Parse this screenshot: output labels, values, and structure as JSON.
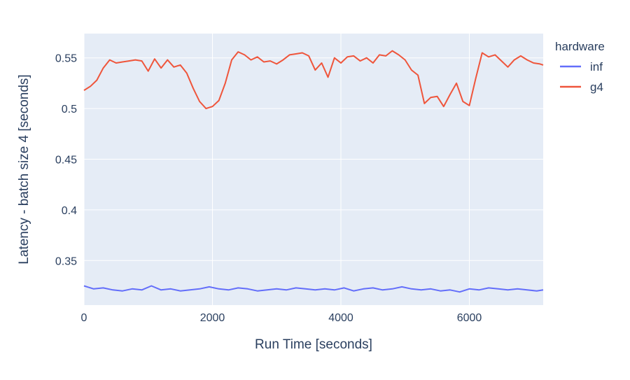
{
  "chart_data": {
    "type": "line",
    "xlabel": "Run Time [seconds]",
    "ylabel": "Latency - batch size 4 [seconds]",
    "xlim": [
      0,
      7150
    ],
    "ylim": [
      0.306,
      0.574
    ],
    "x_ticks": [
      0,
      2000,
      4000,
      6000
    ],
    "x_tick_labels": [
      "0",
      "2000",
      "4000",
      "6000"
    ],
    "y_ticks": [
      0.35,
      0.4,
      0.45,
      0.5,
      0.55
    ],
    "y_tick_labels": [
      "0.35",
      "0.4",
      "0.45",
      "0.5",
      "0.55"
    ],
    "grid": true,
    "legend": {
      "title": "hardware",
      "placement": "top-right",
      "entries": [
        "inf",
        "g4"
      ]
    },
    "series": [
      {
        "name": "inf",
        "color": "#636efa",
        "x": [
          0,
          150,
          300,
          450,
          600,
          750,
          900,
          1050,
          1200,
          1350,
          1500,
          1650,
          1800,
          1950,
          2100,
          2250,
          2400,
          2550,
          2700,
          2850,
          3000,
          3150,
          3300,
          3450,
          3600,
          3750,
          3900,
          4050,
          4200,
          4350,
          4500,
          4650,
          4800,
          4950,
          5100,
          5250,
          5400,
          5550,
          5700,
          5850,
          6000,
          6150,
          6300,
          6450,
          6600,
          6750,
          6900,
          7050,
          7150
        ],
        "y": [
          0.325,
          0.322,
          0.323,
          0.321,
          0.32,
          0.322,
          0.321,
          0.325,
          0.321,
          0.322,
          0.32,
          0.321,
          0.322,
          0.324,
          0.322,
          0.321,
          0.323,
          0.322,
          0.32,
          0.321,
          0.322,
          0.321,
          0.323,
          0.322,
          0.321,
          0.322,
          0.321,
          0.323,
          0.32,
          0.322,
          0.323,
          0.321,
          0.322,
          0.324,
          0.322,
          0.321,
          0.322,
          0.32,
          0.321,
          0.319,
          0.322,
          0.321,
          0.323,
          0.322,
          0.321,
          0.322,
          0.321,
          0.32,
          0.321
        ]
      },
      {
        "name": "g4",
        "color": "#ef553b",
        "x": [
          0,
          100,
          200,
          300,
          400,
          500,
          600,
          700,
          800,
          900,
          1000,
          1100,
          1200,
          1300,
          1400,
          1500,
          1600,
          1700,
          1800,
          1900,
          2000,
          2100,
          2200,
          2300,
          2400,
          2500,
          2600,
          2700,
          2800,
          2900,
          3000,
          3100,
          3200,
          3300,
          3400,
          3500,
          3600,
          3700,
          3800,
          3900,
          4000,
          4100,
          4200,
          4300,
          4400,
          4500,
          4600,
          4700,
          4800,
          4900,
          5000,
          5100,
          5200,
          5300,
          5400,
          5500,
          5600,
          5700,
          5800,
          5900,
          6000,
          6100,
          6200,
          6300,
          6400,
          6500,
          6600,
          6700,
          6800,
          6900,
          7000,
          7100,
          7150
        ],
        "y": [
          0.518,
          0.522,
          0.528,
          0.54,
          0.548,
          0.545,
          0.546,
          0.547,
          0.548,
          0.547,
          0.537,
          0.549,
          0.54,
          0.548,
          0.541,
          0.543,
          0.535,
          0.52,
          0.507,
          0.5,
          0.502,
          0.508,
          0.525,
          0.548,
          0.556,
          0.553,
          0.548,
          0.551,
          0.546,
          0.547,
          0.544,
          0.548,
          0.553,
          0.554,
          0.555,
          0.552,
          0.538,
          0.545,
          0.531,
          0.55,
          0.545,
          0.551,
          0.552,
          0.547,
          0.55,
          0.545,
          0.553,
          0.552,
          0.557,
          0.553,
          0.548,
          0.538,
          0.533,
          0.505,
          0.511,
          0.512,
          0.502,
          0.514,
          0.525,
          0.507,
          0.503,
          0.53,
          0.555,
          0.551,
          0.553,
          0.547,
          0.541,
          0.548,
          0.552,
          0.548,
          0.545,
          0.544,
          0.543
        ]
      }
    ]
  }
}
